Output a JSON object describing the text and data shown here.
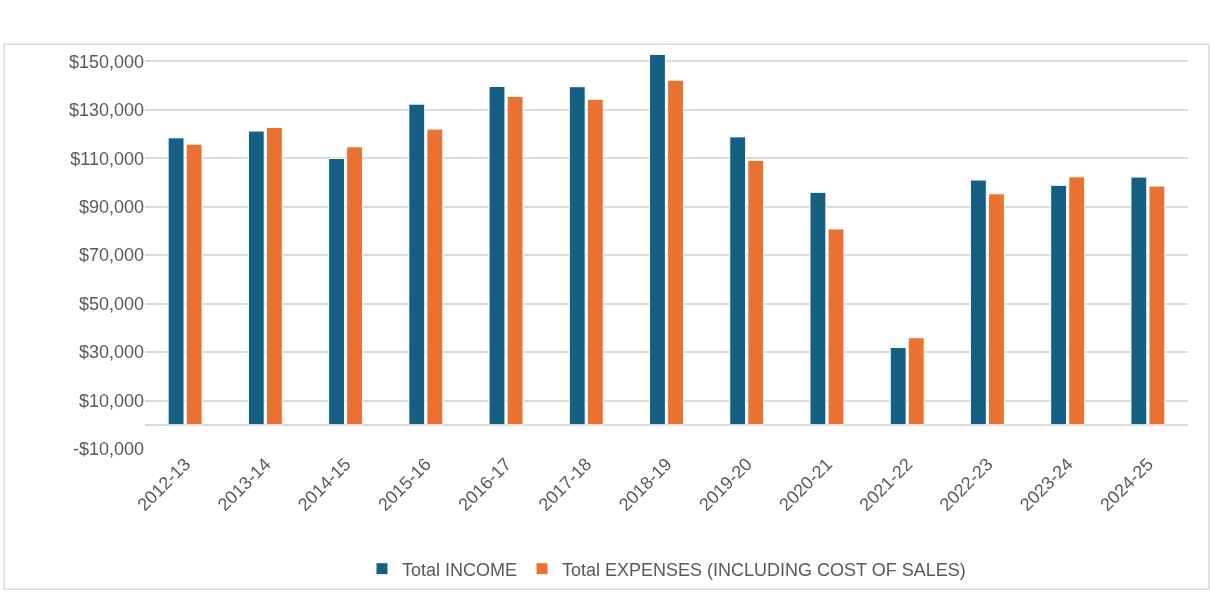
{
  "chart_data": {
    "type": "bar",
    "categories": [
      "2012-13",
      "2013-14",
      "2014-15",
      "2015-16",
      "2016-17",
      "2017-18",
      "2018-19",
      "2019-20",
      "2020-21",
      "2021-22",
      "2022-23",
      "2023-24",
      "2024-25"
    ],
    "series": [
      {
        "name": "Total INCOME",
        "color": "#156082",
        "values": [
          118400,
          121200,
          109900,
          132300,
          139600,
          139500,
          152800,
          118800,
          95900,
          31900,
          101000,
          98800,
          102200
        ]
      },
      {
        "name": "Total EXPENSES (INCLUDING COST OF SALES)",
        "color": "#e97132",
        "values": [
          115800,
          122700,
          114700,
          122000,
          135500,
          134300,
          142200,
          109100,
          80800,
          35900,
          95300,
          102300,
          98500
        ]
      }
    ],
    "yticks": [
      {
        "value": -10000,
        "label": "-$10,000"
      },
      {
        "value": 10000,
        "label": "$10,000"
      },
      {
        "value": 30000,
        "label": "$30,000"
      },
      {
        "value": 50000,
        "label": "$50,000"
      },
      {
        "value": 70000,
        "label": "$70,000"
      },
      {
        "value": 90000,
        "label": "$90,000"
      },
      {
        "value": 110000,
        "label": "$110,000"
      },
      {
        "value": 130000,
        "label": "$130,000"
      },
      {
        "value": 150000,
        "label": "$150,000"
      }
    ],
    "ylim": [
      -10000,
      153000
    ],
    "grid": "y",
    "legend": "bottom"
  }
}
